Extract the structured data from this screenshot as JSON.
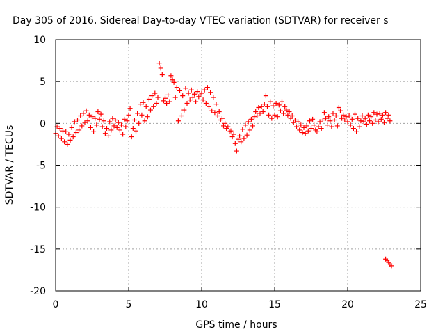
{
  "chart_data": {
    "type": "scatter",
    "title": "Day 305 of 2016, Sidereal Day-to-day VTEC variation (SDTVAR) for receiver s",
    "xlabel": "GPS time / hours",
    "ylabel": "SDTVAR / TECUs",
    "xlim": [
      0,
      25
    ],
    "ylim": [
      -20,
      10
    ],
    "xticks": [
      "0",
      "5",
      "10",
      "15",
      "20",
      "25"
    ],
    "xtick_values": [
      0,
      5,
      10,
      15,
      20,
      25
    ],
    "yticks": [
      "10",
      "5",
      "0",
      "-5",
      "-10",
      "-15",
      "-20"
    ],
    "ytick_values": [
      10,
      5,
      0,
      -5,
      -10,
      -15,
      -20
    ],
    "grid": true,
    "marker": "plus",
    "color": "#ff0000",
    "series": [
      {
        "points": [
          [
            0.0,
            -1.2
          ],
          [
            0.1,
            -0.4
          ],
          [
            0.2,
            -1.5
          ],
          [
            0.3,
            -0.6
          ],
          [
            0.4,
            -1.8
          ],
          [
            0.5,
            -0.9
          ],
          [
            0.6,
            -2.2
          ],
          [
            0.7,
            -1.0
          ],
          [
            0.8,
            -2.5
          ],
          [
            0.9,
            -1.3
          ],
          [
            1.0,
            -2.0
          ],
          [
            1.1,
            -0.5
          ],
          [
            1.2,
            -1.6
          ],
          [
            1.3,
            0.2
          ],
          [
            1.4,
            -1.1
          ],
          [
            1.5,
            0.4
          ],
          [
            1.6,
            -0.8
          ],
          [
            1.7,
            0.9
          ],
          [
            1.8,
            -0.3
          ],
          [
            1.9,
            1.2
          ],
          [
            2.0,
            0.1
          ],
          [
            2.1,
            1.5
          ],
          [
            2.2,
            0.3
          ],
          [
            2.3,
            1.0
          ],
          [
            2.4,
            -0.5
          ],
          [
            2.5,
            0.8
          ],
          [
            2.6,
            -1.0
          ],
          [
            2.7,
            0.6
          ],
          [
            2.8,
            -0.2
          ],
          [
            2.9,
            1.4
          ],
          [
            3.0,
            0.5
          ],
          [
            3.1,
            1.1
          ],
          [
            3.2,
            -0.4
          ],
          [
            3.3,
            0.3
          ],
          [
            3.4,
            -1.2
          ],
          [
            3.5,
            -0.6
          ],
          [
            3.6,
            -1.5
          ],
          [
            3.7,
            0.2
          ],
          [
            3.8,
            -0.8
          ],
          [
            3.9,
            0.6
          ],
          [
            4.0,
            -0.3
          ],
          [
            4.1,
            0.4
          ],
          [
            4.2,
            -0.5
          ],
          [
            4.3,
            0.1
          ],
          [
            4.4,
            -0.8
          ],
          [
            4.5,
            -0.2
          ],
          [
            4.6,
            -1.3
          ],
          [
            4.7,
            0.5
          ],
          [
            4.8,
            -0.4
          ],
          [
            4.9,
            0.3
          ],
          [
            5.0,
            1.0
          ],
          [
            5.1,
            1.8
          ],
          [
            5.2,
            -1.6
          ],
          [
            5.3,
            -0.6
          ],
          [
            5.4,
            0.4
          ],
          [
            5.5,
            -0.9
          ],
          [
            5.6,
            1.2
          ],
          [
            5.7,
            0.0
          ],
          [
            5.8,
            2.3
          ],
          [
            5.9,
            1.0
          ],
          [
            6.0,
            2.5
          ],
          [
            6.1,
            0.3
          ],
          [
            6.2,
            2.0
          ],
          [
            6.3,
            0.8
          ],
          [
            6.4,
            2.9
          ],
          [
            6.5,
            1.6
          ],
          [
            6.6,
            3.3
          ],
          [
            6.7,
            2.0
          ],
          [
            6.8,
            3.6
          ],
          [
            6.9,
            2.4
          ],
          [
            7.0,
            3.1
          ],
          [
            7.1,
            7.2
          ],
          [
            7.2,
            6.6
          ],
          [
            7.3,
            5.8
          ],
          [
            7.4,
            2.7
          ],
          [
            7.5,
            3.0
          ],
          [
            7.6,
            2.4
          ],
          [
            7.7,
            3.4
          ],
          [
            7.8,
            2.6
          ],
          [
            7.9,
            5.7
          ],
          [
            8.0,
            5.2
          ],
          [
            8.1,
            4.9
          ],
          [
            8.2,
            3.1
          ],
          [
            8.3,
            4.3
          ],
          [
            8.4,
            0.3
          ],
          [
            8.5,
            3.9
          ],
          [
            8.6,
            0.9
          ],
          [
            8.7,
            3.3
          ],
          [
            8.8,
            1.6
          ],
          [
            8.9,
            4.2
          ],
          [
            9.0,
            2.4
          ],
          [
            9.1,
            3.6
          ],
          [
            9.2,
            2.8
          ],
          [
            9.3,
            4.0
          ],
          [
            9.4,
            3.1
          ],
          [
            9.5,
            3.5
          ],
          [
            9.6,
            2.6
          ],
          [
            9.7,
            3.8
          ],
          [
            9.8,
            3.2
          ],
          [
            9.9,
            3.4
          ],
          [
            10.0,
            3.6
          ],
          [
            10.1,
            2.8
          ],
          [
            10.2,
            4.0
          ],
          [
            10.3,
            2.4
          ],
          [
            10.4,
            4.3
          ],
          [
            10.5,
            2.0
          ],
          [
            10.6,
            3.7
          ],
          [
            10.7,
            1.5
          ],
          [
            10.8,
            3.1
          ],
          [
            10.9,
            1.3
          ],
          [
            11.0,
            2.3
          ],
          [
            11.1,
            0.9
          ],
          [
            11.2,
            1.4
          ],
          [
            11.3,
            0.4
          ],
          [
            11.4,
            0.6
          ],
          [
            11.5,
            -0.3
          ],
          [
            11.6,
            0.0
          ],
          [
            11.7,
            -0.6
          ],
          [
            11.8,
            -0.4
          ],
          [
            11.9,
            -1.0
          ],
          [
            12.0,
            -0.9
          ],
          [
            12.1,
            -1.6
          ],
          [
            12.2,
            -1.3
          ],
          [
            12.3,
            -2.4
          ],
          [
            12.4,
            -3.3
          ],
          [
            12.5,
            -1.9
          ],
          [
            12.6,
            -1.5
          ],
          [
            12.7,
            -2.2
          ],
          [
            12.8,
            -0.7
          ],
          [
            12.9,
            -1.8
          ],
          [
            13.0,
            -0.2
          ],
          [
            13.1,
            -1.4
          ],
          [
            13.2,
            0.2
          ],
          [
            13.3,
            -0.8
          ],
          [
            13.4,
            0.5
          ],
          [
            13.5,
            -0.3
          ],
          [
            13.6,
            0.8
          ],
          [
            13.7,
            1.4
          ],
          [
            13.8,
            0.9
          ],
          [
            13.9,
            1.9
          ],
          [
            14.0,
            1.2
          ],
          [
            14.1,
            2.0
          ],
          [
            14.2,
            1.4
          ],
          [
            14.3,
            2.3
          ],
          [
            14.4,
            3.3
          ],
          [
            14.5,
            2.0
          ],
          [
            14.6,
            1.0
          ],
          [
            14.7,
            2.6
          ],
          [
            14.8,
            0.6
          ],
          [
            14.9,
            2.1
          ],
          [
            15.0,
            1.0
          ],
          [
            15.1,
            2.4
          ],
          [
            15.2,
            0.8
          ],
          [
            15.3,
            2.2
          ],
          [
            15.4,
            1.5
          ],
          [
            15.5,
            2.6
          ],
          [
            15.6,
            1.2
          ],
          [
            15.7,
            2.0
          ],
          [
            15.8,
            1.6
          ],
          [
            15.9,
            1.0
          ],
          [
            16.0,
            1.4
          ],
          [
            16.1,
            0.6
          ],
          [
            16.2,
            0.9
          ],
          [
            16.3,
            0.1
          ],
          [
            16.4,
            0.4
          ],
          [
            16.5,
            -0.4
          ],
          [
            16.6,
            0.2
          ],
          [
            16.7,
            -0.8
          ],
          [
            16.8,
            -0.2
          ],
          [
            16.9,
            -1.1
          ],
          [
            17.0,
            -0.5
          ],
          [
            17.1,
            -1.2
          ],
          [
            17.2,
            -0.3
          ],
          [
            17.3,
            -0.9
          ],
          [
            17.4,
            0.3
          ],
          [
            17.5,
            -0.6
          ],
          [
            17.6,
            0.5
          ],
          [
            17.7,
            -0.2
          ],
          [
            17.8,
            -0.8
          ],
          [
            17.9,
            -1.0
          ],
          [
            18.0,
            -0.4
          ],
          [
            18.1,
            0.2
          ],
          [
            18.2,
            -0.6
          ],
          [
            18.3,
            0.4
          ],
          [
            18.4,
            1.3
          ],
          [
            18.5,
            0.6
          ],
          [
            18.6,
            -0.2
          ],
          [
            18.7,
            0.8
          ],
          [
            18.8,
            0.3
          ],
          [
            18.9,
            -0.4
          ],
          [
            19.0,
            1.2
          ],
          [
            19.1,
            0.4
          ],
          [
            19.2,
            0.9
          ],
          [
            19.3,
            -0.3
          ],
          [
            19.4,
            1.9
          ],
          [
            19.5,
            1.5
          ],
          [
            19.6,
            0.6
          ],
          [
            19.7,
            1.0
          ],
          [
            19.8,
            0.4
          ],
          [
            19.9,
            0.8
          ],
          [
            20.0,
            0.2
          ],
          [
            20.1,
            0.9
          ],
          [
            20.2,
            -0.2
          ],
          [
            20.3,
            0.5
          ],
          [
            20.4,
            -0.6
          ],
          [
            20.5,
            1.1
          ],
          [
            20.6,
            -1.0
          ],
          [
            20.7,
            0.6
          ],
          [
            20.8,
            -0.4
          ],
          [
            20.9,
            0.3
          ],
          [
            21.0,
            0.9
          ],
          [
            21.1,
            0.2
          ],
          [
            21.2,
            0.6
          ],
          [
            21.3,
            -0.1
          ],
          [
            21.4,
            1.0
          ],
          [
            21.5,
            0.3
          ],
          [
            21.6,
            0.8
          ],
          [
            21.7,
            0.0
          ],
          [
            21.8,
            1.3
          ],
          [
            21.9,
            0.4
          ],
          [
            22.0,
            1.1
          ],
          [
            22.1,
            0.2
          ],
          [
            22.2,
            1.2
          ],
          [
            22.3,
            0.5
          ],
          [
            22.4,
            1.0
          ],
          [
            22.5,
            0.1
          ],
          [
            22.6,
            1.3
          ],
          [
            22.7,
            0.6
          ],
          [
            22.8,
            1.0
          ],
          [
            22.9,
            0.3
          ],
          [
            22.6,
            -16.2
          ],
          [
            22.7,
            -16.4
          ],
          [
            22.8,
            -16.6
          ],
          [
            22.9,
            -16.8
          ],
          [
            23.0,
            -17.0
          ]
        ]
      }
    ]
  }
}
